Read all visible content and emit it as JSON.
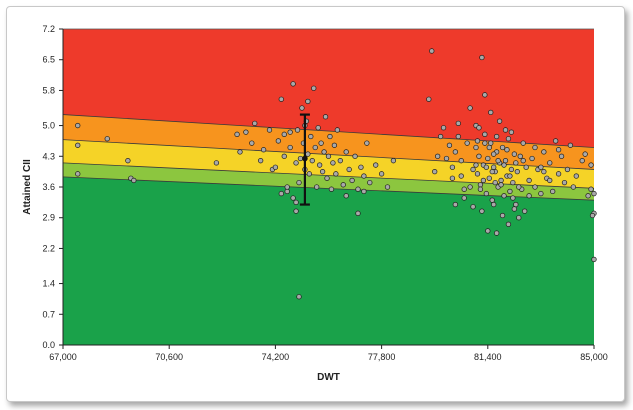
{
  "chart_data": {
    "type": "scatter",
    "title": "",
    "xlabel": "DWT",
    "ylabel": "Attained CII",
    "xlim": [
      67000,
      85000
    ],
    "ylim": [
      0,
      7.2
    ],
    "x_ticks": [
      67000,
      70600,
      74200,
      77800,
      81400,
      85000
    ],
    "x_tick_labels": [
      "67,000",
      "70,600",
      "74,200",
      "77,800",
      "81,400",
      "85,000"
    ],
    "y_ticks": [
      0,
      0.7,
      1.4,
      2.2,
      2.9,
      3.6,
      4.3,
      5.0,
      5.8,
      6.5,
      7.2
    ],
    "y_tick_labels": [
      "0.0",
      "0.7",
      "1.4",
      "2.2",
      "2.9",
      "3.6",
      "4.3",
      "5.0",
      "5.8",
      "6.5",
      "7.2"
    ],
    "grid": false,
    "legend": "none",
    "rating_boundaries": [
      {
        "x": [
          67000,
          85000
        ],
        "y": [
          3.83,
          3.3
        ]
      },
      {
        "x": [
          67000,
          85000
        ],
        "y": [
          4.15,
          3.57
        ]
      },
      {
        "x": [
          67000,
          85000
        ],
        "y": [
          4.68,
          4.0
        ]
      },
      {
        "x": [
          67000,
          85000
        ],
        "y": [
          5.25,
          4.5
        ]
      }
    ],
    "band_colors": [
      "#1aa24a",
      "#8cc63f",
      "#f5d327",
      "#f7941e",
      "#ee3a2b"
    ],
    "error_bar": {
      "x": 75200,
      "y": 4.25,
      "low": 3.2,
      "high": 5.25
    },
    "series": [
      {
        "marker_color": "#a9a9a9",
        "points": [
          [
            67500,
            5.0
          ],
          [
            67500,
            4.55
          ],
          [
            67500,
            3.9
          ],
          [
            68500,
            4.7
          ],
          [
            69300,
            3.8
          ],
          [
            69400,
            3.75
          ],
          [
            69200,
            4.2
          ],
          [
            72200,
            4.15
          ],
          [
            72900,
            4.8
          ],
          [
            73000,
            4.4
          ],
          [
            73200,
            4.85
          ],
          [
            73400,
            4.6
          ],
          [
            73500,
            5.05
          ],
          [
            73700,
            4.2
          ],
          [
            73800,
            4.45
          ],
          [
            74000,
            4.9
          ],
          [
            74100,
            4.0
          ],
          [
            74300,
            4.65
          ],
          [
            74500,
            4.3
          ],
          [
            74600,
            3.5
          ],
          [
            74700,
            4.5
          ],
          [
            74800,
            5.95
          ],
          [
            74900,
            4.15
          ],
          [
            74950,
            4.9
          ],
          [
            75000,
            3.7
          ],
          [
            75050,
            4.25
          ],
          [
            75100,
            5.4
          ],
          [
            75150,
            4.6
          ],
          [
            75200,
            4.0
          ],
          [
            75250,
            5.1
          ],
          [
            75300,
            4.35
          ],
          [
            75350,
            3.9
          ],
          [
            75400,
            4.75
          ],
          [
            75450,
            4.2
          ],
          [
            75500,
            5.85
          ],
          [
            75550,
            4.5
          ],
          [
            75600,
            3.6
          ],
          [
            75650,
            4.95
          ],
          [
            75700,
            4.1
          ],
          [
            75750,
            4.6
          ],
          [
            75800,
            3.95
          ],
          [
            75850,
            4.4
          ],
          [
            75900,
            5.2
          ],
          [
            75950,
            3.8
          ],
          [
            76000,
            4.3
          ],
          [
            76050,
            4.75
          ],
          [
            76100,
            3.55
          ],
          [
            76150,
            4.15
          ],
          [
            76200,
            4.55
          ],
          [
            76250,
            3.9
          ],
          [
            76300,
            4.9
          ],
          [
            76400,
            4.2
          ],
          [
            76500,
            3.65
          ],
          [
            76600,
            4.4
          ],
          [
            76700,
            4.0
          ],
          [
            76800,
            3.75
          ],
          [
            76900,
            4.3
          ],
          [
            77000,
            3.55
          ],
          [
            77100,
            4.05
          ],
          [
            77200,
            3.85
          ],
          [
            77300,
            4.6
          ],
          [
            77400,
            3.7
          ],
          [
            77600,
            4.1
          ],
          [
            77800,
            3.9
          ],
          [
            78000,
            3.6
          ],
          [
            78200,
            4.2
          ],
          [
            74800,
            3.35
          ],
          [
            74900,
            3.05
          ],
          [
            75000,
            1.1
          ],
          [
            74600,
            3.6
          ],
          [
            74400,
            3.45
          ],
          [
            76600,
            3.4
          ],
          [
            77000,
            3.0
          ],
          [
            77200,
            3.5
          ],
          [
            74900,
            3.25
          ],
          [
            74700,
            4.85
          ],
          [
            74400,
            5.6
          ],
          [
            75300,
            5.55
          ],
          [
            75200,
            5.0
          ],
          [
            74500,
            4.8
          ],
          [
            74200,
            4.05
          ],
          [
            79500,
            6.7
          ],
          [
            79400,
            5.6
          ],
          [
            79700,
            4.3
          ],
          [
            79800,
            4.75
          ],
          [
            80200,
            3.8
          ],
          [
            80300,
            4.4
          ],
          [
            80400,
            5.05
          ],
          [
            80500,
            4.2
          ],
          [
            80600,
            3.55
          ],
          [
            80700,
            4.6
          ],
          [
            80800,
            5.4
          ],
          [
            80900,
            4.0
          ],
          [
            81000,
            5.0
          ],
          [
            81000,
            4.5
          ],
          [
            81050,
            3.9
          ],
          [
            81100,
            4.3
          ],
          [
            81150,
            3.65
          ],
          [
            81200,
            6.55
          ],
          [
            81250,
            4.1
          ],
          [
            81300,
            5.7
          ],
          [
            81300,
            4.8
          ],
          [
            81350,
            3.45
          ],
          [
            81400,
            4.25
          ],
          [
            81450,
            3.8
          ],
          [
            81500,
            4.6
          ],
          [
            81550,
            3.3
          ],
          [
            81600,
            4.05
          ],
          [
            81650,
            3.95
          ],
          [
            81700,
            4.4
          ],
          [
            81750,
            3.6
          ],
          [
            81800,
            4.15
          ],
          [
            81850,
            3.75
          ],
          [
            81900,
            4.5
          ],
          [
            81950,
            3.4
          ],
          [
            82000,
            4.2
          ],
          [
            82050,
            3.85
          ],
          [
            82100,
            4.7
          ],
          [
            82150,
            3.5
          ],
          [
            82200,
            4.0
          ],
          [
            82250,
            3.7
          ],
          [
            82300,
            4.35
          ],
          [
            82350,
            3.2
          ],
          [
            82400,
            3.95
          ],
          [
            82450,
            2.9
          ],
          [
            82500,
            4.3
          ],
          [
            82550,
            3.55
          ],
          [
            82600,
            4.6
          ],
          [
            82650,
            3.05
          ],
          [
            82700,
            4.05
          ],
          [
            82800,
            3.75
          ],
          [
            82900,
            4.25
          ],
          [
            83000,
            3.6
          ],
          [
            83100,
            4.0
          ],
          [
            83200,
            3.45
          ],
          [
            83300,
            4.4
          ],
          [
            83400,
            3.8
          ],
          [
            83500,
            4.15
          ],
          [
            83600,
            3.5
          ],
          [
            83700,
            4.65
          ],
          [
            83800,
            3.9
          ],
          [
            83900,
            4.3
          ],
          [
            84000,
            3.7
          ],
          [
            84200,
            4.55
          ],
          [
            84400,
            3.85
          ],
          [
            84600,
            4.2
          ],
          [
            84800,
            3.4
          ],
          [
            84900,
            3.55
          ],
          [
            85000,
            3.45
          ],
          [
            85000,
            3.0
          ],
          [
            85000,
            1.95
          ],
          [
            84950,
            2.95
          ],
          [
            84900,
            4.1
          ],
          [
            81400,
            2.6
          ],
          [
            81700,
            2.55
          ],
          [
            82100,
            2.75
          ],
          [
            80900,
            3.15
          ],
          [
            81200,
            3.05
          ],
          [
            81600,
            3.2
          ],
          [
            81900,
            2.95
          ],
          [
            82300,
            3.1
          ],
          [
            80600,
            3.35
          ],
          [
            80300,
            3.2
          ],
          [
            81100,
            4.95
          ],
          [
            81500,
            5.3
          ],
          [
            81800,
            5.1
          ],
          [
            82200,
            4.85
          ],
          [
            80100,
            4.55
          ],
          [
            79900,
            4.95
          ],
          [
            81300,
            4.6
          ],
          [
            81600,
            4.35
          ],
          [
            81000,
            4.1
          ],
          [
            81450,
            4.5
          ],
          [
            81750,
            4.2
          ],
          [
            82050,
            4.45
          ],
          [
            82350,
            4.15
          ],
          [
            81250,
            3.75
          ],
          [
            81550,
            3.95
          ],
          [
            81850,
            3.65
          ],
          [
            82150,
            3.85
          ],
          [
            82450,
            3.6
          ],
          [
            81150,
            3.55
          ],
          [
            81350,
            4.05
          ],
          [
            81650,
            3.7
          ],
          [
            81950,
            4.1
          ],
          [
            82250,
            3.35
          ],
          [
            80800,
            3.6
          ],
          [
            80500,
            3.85
          ],
          [
            80200,
            4.05
          ],
          [
            79600,
            3.95
          ],
          [
            80000,
            4.25
          ],
          [
            80400,
            4.75
          ],
          [
            83200,
            4.05
          ],
          [
            83500,
            3.75
          ],
          [
            83800,
            4.45
          ],
          [
            84100,
            4.0
          ],
          [
            84300,
            3.6
          ],
          [
            84700,
            4.35
          ],
          [
            81050,
            4.65
          ],
          [
            81700,
            4.75
          ],
          [
            82000,
            4.9
          ],
          [
            82600,
            4.2
          ],
          [
            82800,
            3.4
          ],
          [
            83000,
            4.5
          ],
          [
            83300,
            3.95
          ]
        ]
      }
    ]
  }
}
